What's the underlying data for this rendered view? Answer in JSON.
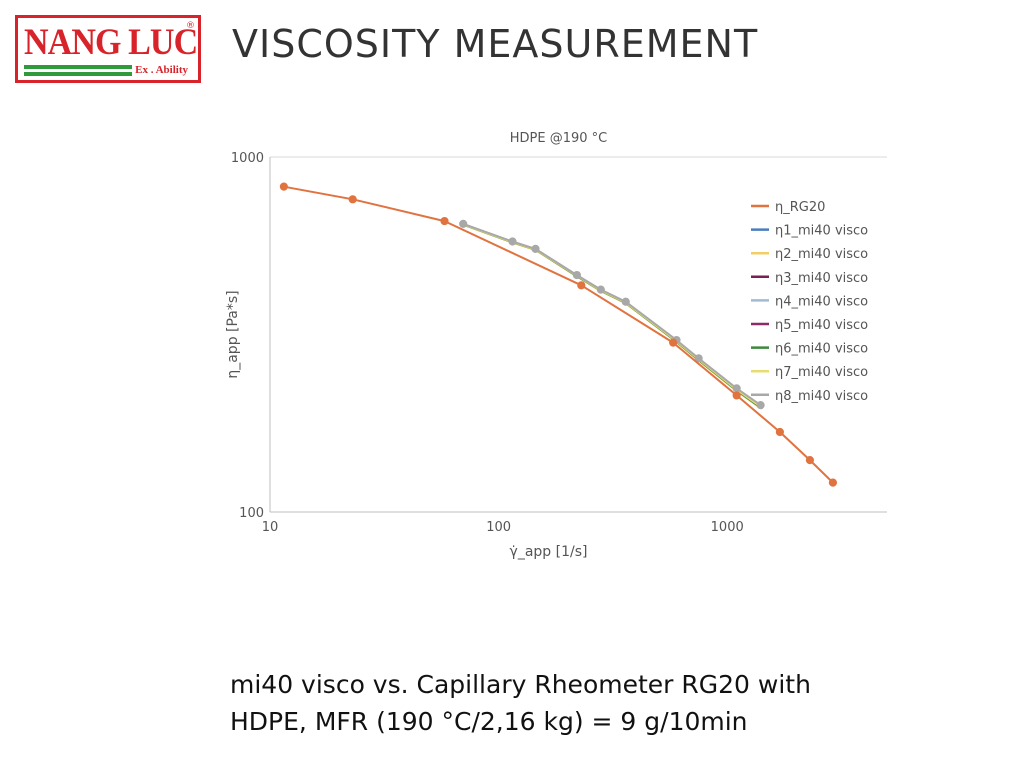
{
  "logo": {
    "name": "NANG LUC",
    "registered": "®",
    "tagline": "Ex . Ability"
  },
  "slide": {
    "title": "VISCOSITY MEASUREMENT",
    "caption_line1": "mi40 visco vs. Capillary Rheometer RG20 with",
    "caption_line2": "HDPE, MFR (190 °C/2,16 kg) = 9 g/10min"
  },
  "colors": {
    "brand_red": "#d8232a",
    "brand_green": "#2e9a3c"
  },
  "chart_data": {
    "type": "line",
    "title": "HDPE @190 °C",
    "ylabel": "η_app [Pa*s]",
    "xlabel": "γ̇_app [1/s]",
    "xscale": "log",
    "yscale": "log",
    "xlim": [
      10,
      5000
    ],
    "ylim": [
      100,
      1000
    ],
    "xticks": [
      10,
      100,
      1000
    ],
    "xtick_labels": [
      "10",
      "100",
      "1000"
    ],
    "yticks": [
      100,
      1000
    ],
    "ytick_labels": [
      "100",
      "1000"
    ],
    "legend_position": "right",
    "series": [
      {
        "name": "η_RG20",
        "color": "#e0733f",
        "markers": true,
        "x": [
          11.5,
          23,
          58,
          230,
          580,
          1100,
          1700,
          2300,
          2900
        ],
        "y": [
          825,
          760,
          660,
          435,
          300,
          213,
          168,
          140,
          121
        ]
      },
      {
        "name": "η1_mi40 visco",
        "color": "#4a7ec0",
        "markers": false,
        "x": [
          70,
          115,
          145,
          220,
          280,
          360,
          600,
          750,
          1100,
          1400
        ],
        "y": [
          645,
          575,
          548,
          462,
          420,
          388,
          302,
          268,
          220,
          197
        ]
      },
      {
        "name": "η2_mi40 visco",
        "color": "#f0cf66",
        "markers": false,
        "x": [
          70,
          115,
          145,
          220,
          280,
          360,
          600,
          750,
          1100,
          1400
        ],
        "y": [
          644,
          574,
          547,
          461,
          419,
          387,
          301,
          267,
          219,
          196
        ]
      },
      {
        "name": "η3_mi40 visco",
        "color": "#7a2050",
        "markers": false,
        "x": [
          70,
          115,
          145,
          220,
          280,
          360,
          600,
          750,
          1100,
          1400
        ],
        "y": [
          646,
          576,
          549,
          463,
          421,
          389,
          303,
          269,
          221,
          198
        ]
      },
      {
        "name": "η4_mi40 visco",
        "color": "#9fbcd4",
        "markers": false,
        "x": [
          70,
          115,
          145,
          220,
          280,
          360,
          600,
          750,
          1100,
          1400
        ],
        "y": [
          645,
          575,
          548,
          462,
          420,
          388,
          302,
          268,
          220,
          197
        ]
      },
      {
        "name": "η5_mi40 visco",
        "color": "#8b2a6e",
        "markers": false,
        "x": [
          70,
          115,
          145,
          220,
          280,
          360,
          600,
          750,
          1100,
          1400
        ],
        "y": [
          647,
          577,
          550,
          464,
          422,
          390,
          304,
          270,
          222,
          199
        ]
      },
      {
        "name": "η6_mi40 visco",
        "color": "#3d8a3d",
        "markers": false,
        "x": [
          70,
          115,
          145,
          220,
          280,
          360,
          600,
          750,
          1100,
          1400
        ],
        "y": [
          645,
          575,
          548,
          462,
          420,
          388,
          302,
          268,
          220,
          197
        ]
      },
      {
        "name": "η7_mi40 visco",
        "color": "#e8dc70",
        "markers": false,
        "x": [
          70,
          115,
          145,
          220,
          280,
          360,
          600,
          750,
          1100,
          1400
        ],
        "y": [
          646,
          576,
          549,
          463,
          421,
          389,
          303,
          269,
          221,
          198
        ]
      },
      {
        "name": "η8_mi40 visco",
        "color": "#a8a8a8",
        "markers": true,
        "x": [
          70,
          115,
          145,
          220,
          280,
          360,
          600,
          750,
          1100,
          1400
        ],
        "y": [
          648,
          578,
          551,
          465,
          423,
          391,
          305,
          271,
          223,
          200
        ]
      }
    ]
  }
}
